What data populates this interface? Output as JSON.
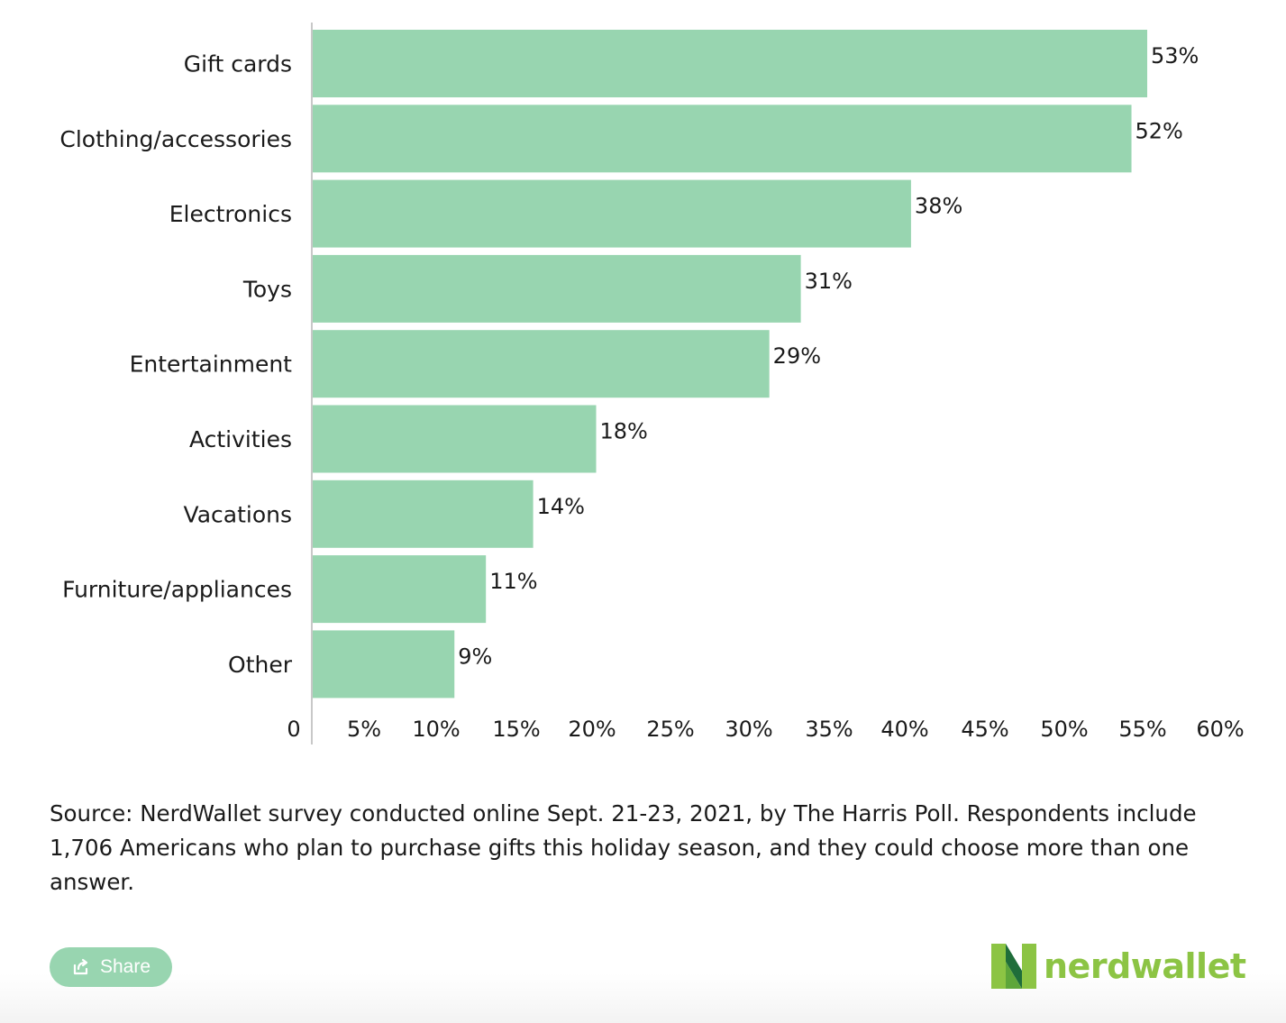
{
  "chart_data": {
    "type": "bar",
    "orientation": "horizontal",
    "categories": [
      "Gift cards",
      "Clothing/accessories",
      "Electronics",
      "Toys",
      "Entertainment",
      "Activities",
      "Vacations",
      "Furniture/appliances",
      "Other"
    ],
    "values": [
      53,
      52,
      38,
      31,
      29,
      18,
      14,
      11,
      9
    ],
    "value_labels": [
      "53%",
      "52%",
      "38%",
      "31%",
      "29%",
      "18%",
      "14%",
      "11%",
      "9%"
    ],
    "xlim": [
      0,
      53
    ],
    "x_ticks": [
      "0",
      "5%",
      "10%",
      "15%",
      "20%",
      "25%",
      "30%",
      "35%",
      "40%",
      "45%",
      "50%",
      "55%",
      "60%"
    ],
    "grid": false,
    "bar_color": "#98d5b0"
  },
  "source_note": "Source: NerdWallet survey conducted online Sept. 21-23, 2021, by The Harris Poll. Respondents include 1,706 Americans who plan to purchase gifts this holiday season, and they could choose more than one answer.",
  "share_button": {
    "label": "Share",
    "icon": "share-icon"
  },
  "logo": {
    "text": "nerdwallet",
    "icon": "nerdwallet-logo-icon",
    "color": "#8cc444"
  }
}
